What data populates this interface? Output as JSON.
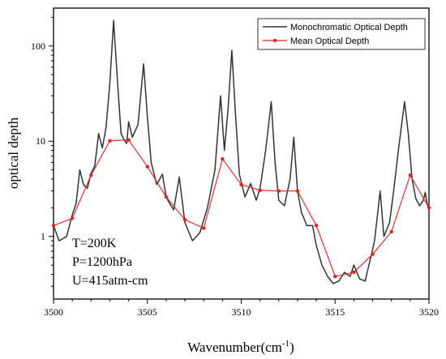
{
  "chart_data": {
    "type": "line",
    "yscale": "log",
    "xlabel": "Wavenumber(cm",
    "xlabel_sup": "-1",
    "xlabel_close": ")",
    "ylabel": "optical depth",
    "xlim": [
      3500,
      3520
    ],
    "ylim": [
      0.22,
      250
    ],
    "xticks": [
      3500,
      3505,
      3510,
      3515,
      3520
    ],
    "yticks": [
      1,
      10,
      100
    ],
    "legend_position": "top-right",
    "annotations": [
      "T=200K",
      "P=1200hPa",
      "U=415atm-cm"
    ],
    "series": [
      {
        "name": "Monochromatic Optical Depth",
        "color": "#333333",
        "x": [
          3500.0,
          3500.3,
          3500.7,
          3501.0,
          3501.2,
          3501.4,
          3501.6,
          3501.8,
          3502.0,
          3502.2,
          3502.4,
          3502.6,
          3502.8,
          3503.0,
          3503.2,
          3503.4,
          3503.6,
          3503.8,
          3503.9,
          3504.0,
          3504.2,
          3504.5,
          3504.8,
          3505.0,
          3505.2,
          3505.5,
          3505.8,
          3506.0,
          3506.2,
          3506.4,
          3506.7,
          3507.0,
          3507.4,
          3507.8,
          3508.2,
          3508.6,
          3508.9,
          3509.1,
          3509.3,
          3509.5,
          3509.7,
          3509.9,
          3510.2,
          3510.5,
          3510.8,
          3511.0,
          3511.3,
          3511.6,
          3511.8,
          3512.0,
          3512.3,
          3512.6,
          3512.8,
          3513.0,
          3513.2,
          3513.5,
          3513.8,
          3514.0,
          3514.3,
          3514.6,
          3514.9,
          3515.2,
          3515.5,
          3515.8,
          3516.0,
          3516.3,
          3516.6,
          3516.9,
          3517.1,
          3517.4,
          3517.6,
          3517.9,
          3518.1,
          3518.4,
          3518.7,
          3518.9,
          3519.1,
          3519.3,
          3519.5,
          3519.7,
          3519.8,
          3519.9,
          3520.0
        ],
        "y": [
          1.3,
          0.9,
          1.0,
          1.7,
          2.2,
          5.0,
          3.5,
          3.2,
          4.6,
          5.5,
          12.0,
          8.5,
          14.0,
          40.0,
          185.0,
          45.0,
          12.0,
          10.0,
          9.5,
          16.0,
          11.0,
          15.0,
          65.0,
          18.0,
          6.0,
          3.5,
          4.5,
          2.6,
          2.2,
          1.9,
          4.2,
          1.4,
          0.9,
          1.1,
          2.0,
          5.0,
          30.0,
          8.0,
          22.0,
          90.0,
          18.0,
          4.5,
          2.6,
          3.6,
          2.4,
          3.2,
          8.0,
          26.0,
          6.0,
          2.4,
          2.1,
          4.0,
          11.0,
          3.0,
          1.8,
          1.3,
          1.3,
          0.8,
          0.5,
          0.38,
          0.32,
          0.34,
          0.42,
          0.38,
          0.5,
          0.36,
          0.34,
          0.6,
          0.9,
          3.0,
          1.0,
          1.4,
          2.8,
          9.0,
          26.0,
          12.0,
          4.0,
          2.5,
          2.1,
          2.4,
          2.9,
          2.2,
          1.9
        ]
      },
      {
        "name": "Mean Optical Depth",
        "color": "#e8201c",
        "x": [
          3500,
          3501,
          3502,
          3503,
          3504,
          3505,
          3506,
          3507,
          3508,
          3509,
          3510,
          3511,
          3512,
          3513,
          3514,
          3515,
          3516,
          3517,
          3518,
          3519,
          3520
        ],
        "y": [
          1.3,
          1.55,
          4.4,
          10.1,
          10.3,
          5.4,
          2.6,
          1.5,
          1.22,
          6.5,
          3.5,
          3.05,
          3.0,
          3.0,
          1.3,
          0.38,
          0.42,
          0.65,
          1.12,
          4.4,
          2.0
        ]
      }
    ]
  }
}
